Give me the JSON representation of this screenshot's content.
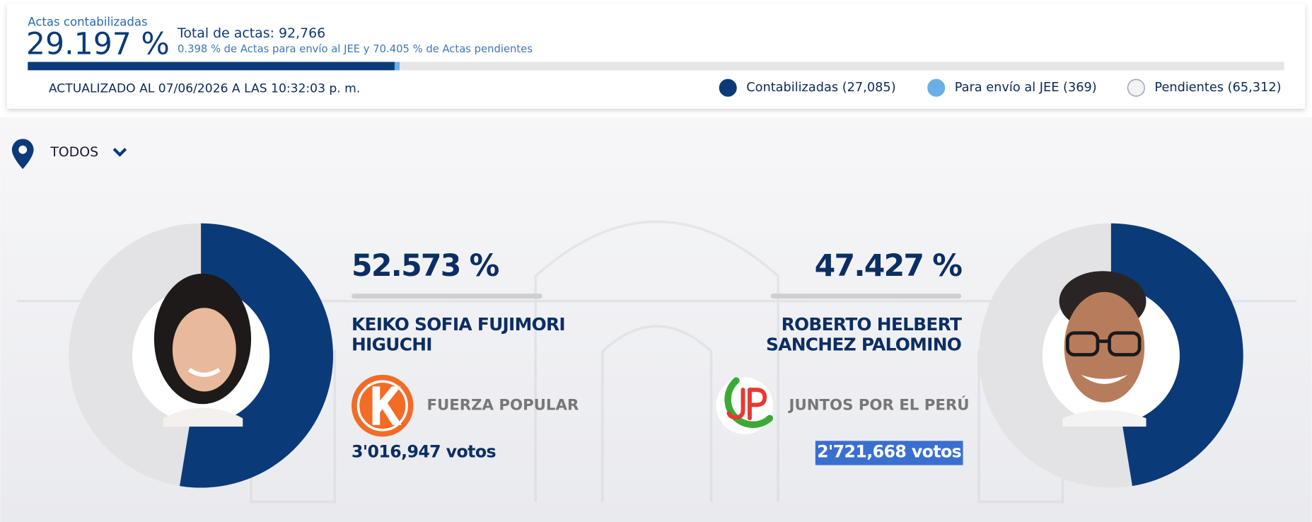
{
  "header": {
    "counted_label": "Actas contabilizadas",
    "counted_percent": {
      "value": 29.197,
      "label": "29.197 %"
    },
    "total": "Total de actas: 92,766",
    "subtitle": "0.398 % de Actas para envío al JEE y 70.405 % de Actas pendientes",
    "jee_percent": 0.398,
    "updated": "ACTUALIZADO AL 07/06/2026 A LAS 10:32:03 p. m.",
    "legend": [
      {
        "label": "Contabilizadas (27,085)",
        "color": "#0b3a78"
      },
      {
        "label": "Para envío al JEE (369)",
        "color": "#6aaee6"
      },
      {
        "label": "Pendientes (65,312)",
        "color": "#f2f2f2"
      }
    ]
  },
  "filter": "TODOS",
  "candidates": [
    {
      "percent": {
        "value": 52.573,
        "label": "52.573 %"
      },
      "name_lines": [
        "KEIKO SOFIA FUJIMORI",
        "HIGUCHI"
      ],
      "party": "FUERZA POPULAR",
      "votes": "3'016,947 votos",
      "color": "#0b3a78"
    },
    {
      "percent": {
        "value": 47.427,
        "label": "47.427 %"
      },
      "name_lines": [
        "ROBERTO HELBERT",
        "SANCHEZ PALOMINO"
      ],
      "party": "JUNTOS POR EL PERÚ",
      "votes": "2'721,668 votos",
      "color": "#0b3a78"
    }
  ]
}
